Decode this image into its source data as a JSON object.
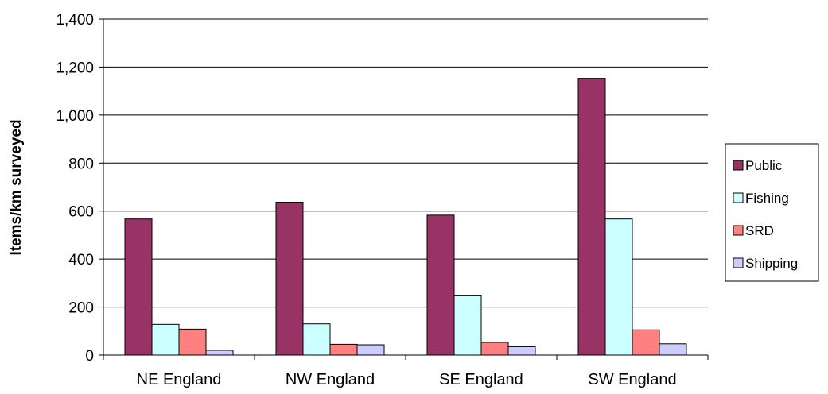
{
  "chart_data": {
    "type": "bar",
    "title": "",
    "xlabel": "",
    "ylabel": "Items/km surveyed",
    "ylim": [
      0,
      1400
    ],
    "yticks": [
      0,
      200,
      400,
      600,
      800,
      1000,
      1200,
      1400
    ],
    "ytick_labels": [
      "0",
      "200",
      "400",
      "600",
      "800",
      "1,000",
      "1,200",
      "1,400"
    ],
    "grid": true,
    "legend_position": "right",
    "categories": [
      "NE England",
      "NW England",
      "SE England",
      "SW England"
    ],
    "series": [
      {
        "name": "Public",
        "color": "#993366",
        "values": [
          567,
          637,
          583,
          1153
        ]
      },
      {
        "name": "Fishing",
        "color": "#CCFFFF",
        "values": [
          128,
          130,
          247,
          567
        ]
      },
      {
        "name": "SRD",
        "color": "#FF8080",
        "values": [
          108,
          45,
          53,
          105
        ]
      },
      {
        "name": "Shipping",
        "color": "#CCCCFF",
        "values": [
          20,
          43,
          35,
          47
        ]
      }
    ]
  }
}
